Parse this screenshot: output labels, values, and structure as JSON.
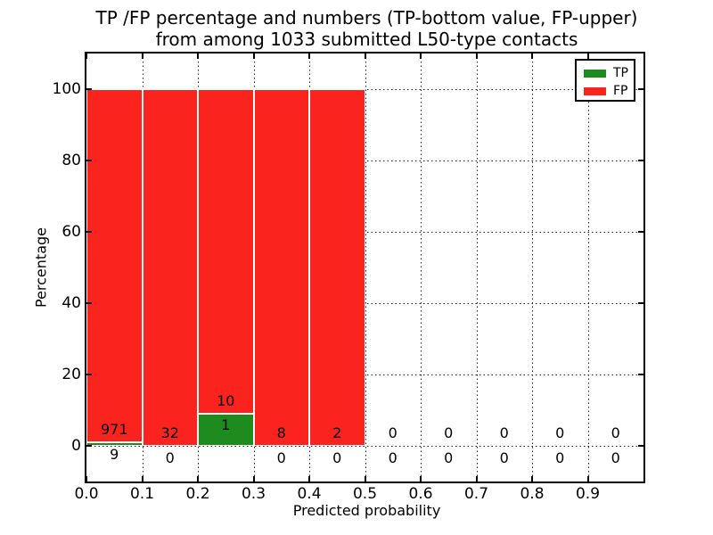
{
  "chart_data": {
    "type": "bar",
    "stacked": true,
    "title_lines": [
      "TP /FP percentage and numbers (TP-bottom value, FP-upper)",
      "from among 1033 submitted L50-type contacts"
    ],
    "xlabel": "Predicted probability",
    "ylabel": "Percentage",
    "xlim": [
      0.0,
      1.0
    ],
    "ylim": [
      -10,
      110
    ],
    "grid": "dotted",
    "legend_position": "upper right",
    "x_ticks": [
      {
        "v": 0.0,
        "label": "0.0"
      },
      {
        "v": 0.1,
        "label": "0.1"
      },
      {
        "v": 0.2,
        "label": "0.2"
      },
      {
        "v": 0.3,
        "label": "0.3"
      },
      {
        "v": 0.4,
        "label": "0.4"
      },
      {
        "v": 0.5,
        "label": "0.5"
      },
      {
        "v": 0.6,
        "label": "0.6"
      },
      {
        "v": 0.7,
        "label": "0.7"
      },
      {
        "v": 0.8,
        "label": "0.8"
      },
      {
        "v": 0.9,
        "label": "0.9"
      }
    ],
    "y_ticks": [
      {
        "v": 0,
        "label": "0"
      },
      {
        "v": 20,
        "label": "20"
      },
      {
        "v": 40,
        "label": "40"
      },
      {
        "v": 60,
        "label": "60"
      },
      {
        "v": 80,
        "label": "80"
      },
      {
        "v": 100,
        "label": "100"
      }
    ],
    "bin_width": 0.1,
    "bins": [
      {
        "x0": 0.0,
        "tp": 9,
        "fp": 971
      },
      {
        "x0": 0.1,
        "tp": 0,
        "fp": 32
      },
      {
        "x0": 0.2,
        "tp": 1,
        "fp": 10
      },
      {
        "x0": 0.3,
        "tp": 0,
        "fp": 8
      },
      {
        "x0": 0.4,
        "tp": 0,
        "fp": 2
      },
      {
        "x0": 0.5,
        "tp": 0,
        "fp": 0
      },
      {
        "x0": 0.6,
        "tp": 0,
        "fp": 0
      },
      {
        "x0": 0.7,
        "tp": 0,
        "fp": 0
      },
      {
        "x0": 0.8,
        "tp": 0,
        "fp": 0
      },
      {
        "x0": 0.9,
        "tp": 0,
        "fp": 0
      }
    ],
    "colors": {
      "tp": "#1e8b1e",
      "fp": "#fa231e",
      "frame": "#000000",
      "grid": "#222222"
    },
    "legend": [
      {
        "label": "TP",
        "color": "#1e8b1e"
      },
      {
        "label": "FP",
        "color": "#fa231e"
      }
    ]
  }
}
